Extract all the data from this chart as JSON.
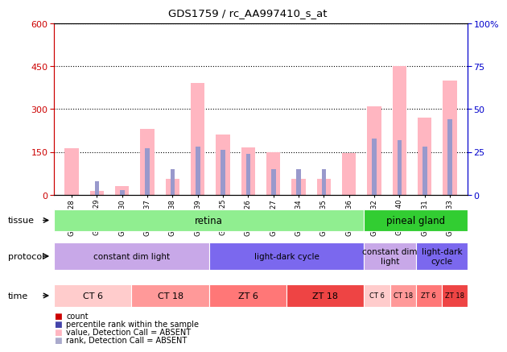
{
  "title": "GDS1759 / rc_AA997410_s_at",
  "samples": [
    "GSM53328",
    "GSM53329",
    "GSM53330",
    "GSM53337",
    "GSM53338",
    "GSM53339",
    "GSM53325",
    "GSM53326",
    "GSM53327",
    "GSM53334",
    "GSM53335",
    "GSM53336",
    "GSM53332",
    "GSM53340",
    "GSM53331",
    "GSM53333"
  ],
  "values_pink": [
    163,
    15,
    30,
    230,
    55,
    390,
    210,
    165,
    150,
    55,
    55,
    145,
    310,
    450,
    270,
    400
  ],
  "values_blue_pct": [
    0,
    8,
    3,
    27,
    15,
    28,
    26,
    24,
    15,
    15,
    15,
    0,
    33,
    32,
    28,
    44
  ],
  "ylim_left": [
    0,
    600
  ],
  "ylim_right": [
    0,
    100
  ],
  "yticks_left": [
    0,
    150,
    300,
    450,
    600
  ],
  "yticks_right": [
    0,
    25,
    50,
    75,
    100
  ],
  "tissue_groups": [
    {
      "label": "retina",
      "start": 0,
      "end": 12,
      "color": "#90EE90"
    },
    {
      "label": "pineal gland",
      "start": 12,
      "end": 16,
      "color": "#32CD32"
    }
  ],
  "protocol_groups": [
    {
      "label": "constant dim light",
      "start": 0,
      "end": 6,
      "color": "#C8A8E8"
    },
    {
      "label": "light-dark cycle",
      "start": 6,
      "end": 12,
      "color": "#7B68EE"
    },
    {
      "label": "constant dim\nlight",
      "start": 12,
      "end": 14,
      "color": "#C8A8E8"
    },
    {
      "label": "light-dark\ncycle",
      "start": 14,
      "end": 16,
      "color": "#7B68EE"
    }
  ],
  "time_groups": [
    {
      "label": "CT 6",
      "start": 0,
      "end": 3,
      "color": "#FFCCCC"
    },
    {
      "label": "CT 18",
      "start": 3,
      "end": 6,
      "color": "#FF9999"
    },
    {
      "label": "ZT 6",
      "start": 6,
      "end": 9,
      "color": "#FF7777"
    },
    {
      "label": "ZT 18",
      "start": 9,
      "end": 12,
      "color": "#EE4444"
    },
    {
      "label": "CT 6",
      "start": 12,
      "end": 13,
      "color": "#FFCCCC"
    },
    {
      "label": "CT 18",
      "start": 13,
      "end": 14,
      "color": "#FF9999"
    },
    {
      "label": "ZT 6",
      "start": 14,
      "end": 15,
      "color": "#FF7777"
    },
    {
      "label": "ZT 18",
      "start": 15,
      "end": 16,
      "color": "#EE4444"
    }
  ],
  "pink_color": "#FFB6C1",
  "blue_color": "#9999CC",
  "axis_left_color": "#CC0000",
  "axis_right_color": "#0000CC",
  "bg_color": "white",
  "legend_items": [
    {
      "color": "#CC0000",
      "label": "count"
    },
    {
      "color": "#4444AA",
      "label": "percentile rank within the sample"
    },
    {
      "color": "#FFB6C1",
      "label": "value, Detection Call = ABSENT"
    },
    {
      "color": "#AAAACC",
      "label": "rank, Detection Call = ABSENT"
    }
  ]
}
